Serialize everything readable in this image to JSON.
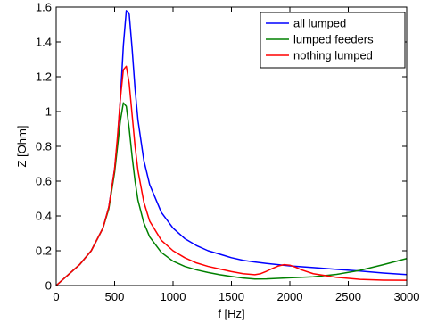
{
  "chart_data": {
    "type": "line",
    "xlabel": "f [Hz]",
    "ylabel": "Z [Ohm]",
    "xlim": [
      0,
      3000
    ],
    "ylim": [
      0,
      1.6
    ],
    "xticks": [
      0,
      500,
      1000,
      1500,
      2000,
      2500,
      3000
    ],
    "yticks": [
      0,
      0.2,
      0.4,
      0.6,
      0.8,
      1,
      1.2,
      1.4,
      1.6
    ],
    "xtick_labels": [
      "0",
      "500",
      "1000",
      "1500",
      "2000",
      "2500",
      "3000"
    ],
    "ytick_labels": [
      "0",
      "0.2",
      "0.4",
      "0.6",
      "0.8",
      "1",
      "1.2",
      "1.4",
      "1.6"
    ],
    "grid": false,
    "legend_position": "top-right",
    "series": [
      {
        "name": "all lumped",
        "color": "#0000ff",
        "x": [
          0,
          100,
          200,
          300,
          400,
          450,
          500,
          525,
          550,
          575,
          600,
          625,
          650,
          675,
          700,
          750,
          800,
          900,
          1000,
          1100,
          1200,
          1300,
          1400,
          1500,
          1600,
          1700,
          1800,
          1900,
          2000,
          2200,
          2400,
          2600,
          2800,
          3000
        ],
        "y": [
          0.0,
          0.06,
          0.12,
          0.2,
          0.33,
          0.45,
          0.67,
          0.84,
          1.08,
          1.38,
          1.58,
          1.56,
          1.36,
          1.13,
          0.95,
          0.72,
          0.58,
          0.42,
          0.33,
          0.27,
          0.23,
          0.2,
          0.18,
          0.16,
          0.145,
          0.135,
          0.127,
          0.12,
          0.113,
          0.103,
          0.093,
          0.083,
          0.072,
          0.063
        ]
      },
      {
        "name": "lumped feeders",
        "color": "#008000",
        "x": [
          0,
          100,
          200,
          300,
          400,
          450,
          500,
          525,
          550,
          575,
          600,
          625,
          650,
          675,
          700,
          750,
          800,
          900,
          1000,
          1100,
          1200,
          1300,
          1400,
          1500,
          1600,
          1700,
          1800,
          1900,
          2000,
          2200,
          2400,
          2600,
          2800,
          3000
        ],
        "y": [
          0.0,
          0.06,
          0.12,
          0.2,
          0.33,
          0.44,
          0.65,
          0.8,
          0.95,
          1.05,
          1.03,
          0.9,
          0.74,
          0.6,
          0.49,
          0.36,
          0.28,
          0.19,
          0.14,
          0.11,
          0.09,
          0.075,
          0.062,
          0.052,
          0.043,
          0.037,
          0.038,
          0.041,
          0.044,
          0.05,
          0.064,
          0.087,
          0.12,
          0.155
        ]
      },
      {
        "name": "nothing lumped",
        "color": "#ff0000",
        "x": [
          0,
          100,
          200,
          300,
          400,
          450,
          500,
          525,
          550,
          575,
          600,
          625,
          650,
          675,
          700,
          750,
          800,
          900,
          1000,
          1100,
          1200,
          1300,
          1400,
          1500,
          1600,
          1700,
          1750,
          1800,
          1850,
          1900,
          1950,
          2000,
          2050,
          2100,
          2200,
          2400,
          2600,
          2800,
          3000
        ],
        "y": [
          0.0,
          0.06,
          0.12,
          0.2,
          0.33,
          0.45,
          0.67,
          0.86,
          1.08,
          1.24,
          1.26,
          1.16,
          0.98,
          0.8,
          0.66,
          0.48,
          0.37,
          0.26,
          0.2,
          0.16,
          0.13,
          0.11,
          0.095,
          0.08,
          0.068,
          0.062,
          0.068,
          0.082,
          0.098,
          0.112,
          0.12,
          0.117,
          0.105,
          0.09,
          0.068,
          0.047,
          0.035,
          0.031,
          0.03
        ]
      }
    ]
  }
}
